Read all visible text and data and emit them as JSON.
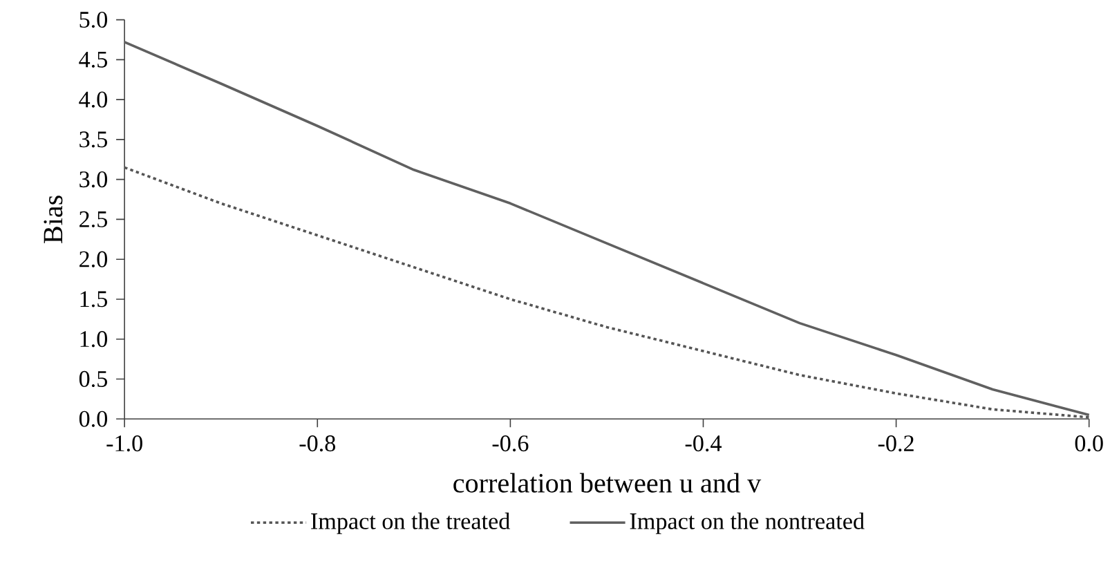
{
  "chart_data": {
    "type": "line",
    "xlabel": "correlation between u and v",
    "ylabel": "Bias",
    "x": [
      -1.0,
      -0.9,
      -0.8,
      -0.7,
      -0.6,
      -0.5,
      -0.4,
      -0.3,
      -0.2,
      -0.1,
      0.0
    ],
    "series": [
      {
        "name": "Impact on the treated",
        "color": "#555555",
        "line_style": "dotted",
        "values": [
          3.15,
          2.7,
          2.3,
          1.9,
          1.5,
          1.15,
          0.85,
          0.55,
          0.32,
          0.12,
          0.02
        ]
      },
      {
        "name": "Impact on the nontreated",
        "color": "#606060",
        "line_style": "solid",
        "values": [
          4.72,
          4.2,
          3.67,
          3.12,
          2.7,
          2.2,
          1.7,
          1.2,
          0.8,
          0.37,
          0.05
        ]
      }
    ],
    "xlim": [
      -1.0,
      0.0
    ],
    "xticks": [
      {
        "value": -1.0,
        "label": "-1.0"
      },
      {
        "value": -0.8,
        "label": "-0.8"
      },
      {
        "value": -0.6,
        "label": "-0.6"
      },
      {
        "value": -0.4,
        "label": "-0.4"
      },
      {
        "value": -0.2,
        "label": "-0.2"
      },
      {
        "value": 0.0,
        "label": "0.0"
      }
    ],
    "ylim": [
      0.0,
      5.0
    ],
    "yticks": [
      {
        "value": 0.0,
        "label": "0.0"
      },
      {
        "value": 0.5,
        "label": "0.5"
      },
      {
        "value": 1.0,
        "label": "1.0"
      },
      {
        "value": 1.5,
        "label": "1.5"
      },
      {
        "value": 2.0,
        "label": "2.0"
      },
      {
        "value": 2.5,
        "label": "2.5"
      },
      {
        "value": 3.0,
        "label": "3.0"
      },
      {
        "value": 3.5,
        "label": "3.5"
      },
      {
        "value": 4.0,
        "label": "4.0"
      },
      {
        "value": 4.5,
        "label": "4.5"
      },
      {
        "value": 5.0,
        "label": "5.0"
      }
    ],
    "grid": false,
    "legend": "bottom",
    "marker": "none"
  }
}
